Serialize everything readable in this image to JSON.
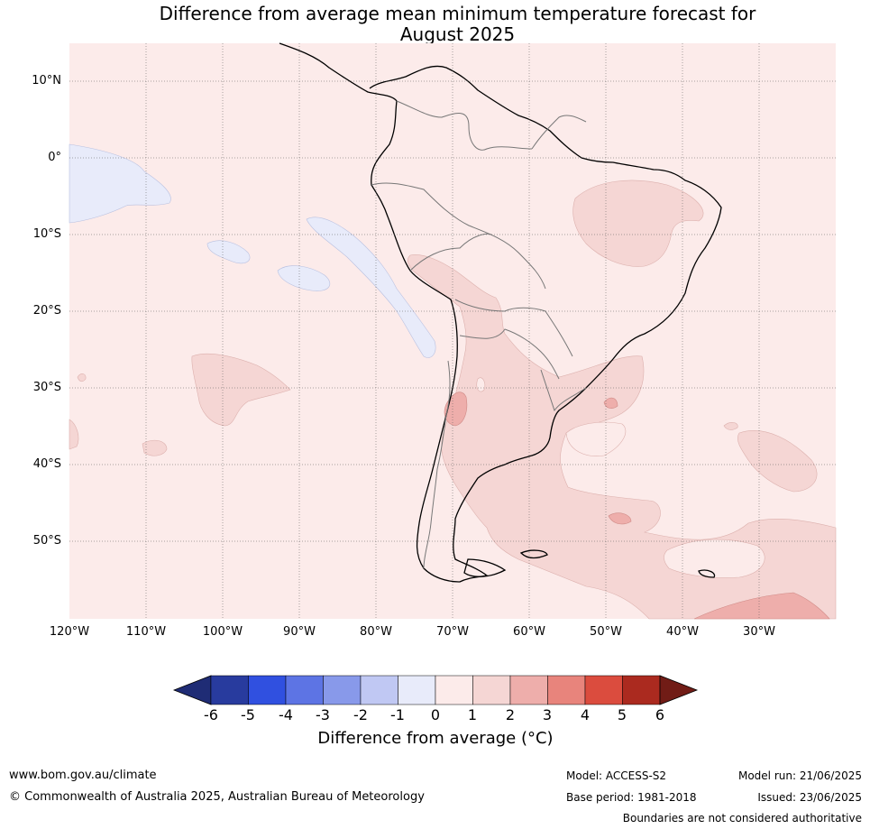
{
  "title": {
    "line1": "Difference from average mean minimum temperature forecast for",
    "line2": "August 2025"
  },
  "map": {
    "lat_labels": [
      "10°N",
      "0°",
      "10°S",
      "20°S",
      "30°S",
      "40°S",
      "50°S"
    ],
    "lon_labels": [
      "120°W",
      "110°W",
      "100°W",
      "90°W",
      "80°W",
      "70°W",
      "60°W",
      "50°W",
      "40°W",
      "30°W"
    ],
    "region": "South America and surrounding oceans",
    "gridlines": "dotted"
  },
  "colorbar": {
    "ticks": [
      "-6",
      "-5",
      "-4",
      "-3",
      "-2",
      "-1",
      "0",
      "1",
      "2",
      "3",
      "4",
      "5",
      "6"
    ],
    "colors": [
      "#283b9e",
      "#3050e0",
      "#5d74e4",
      "#8899ea",
      "#c0c8f3",
      "#e8ebfa",
      "#fcebea",
      "#f5d6d4",
      "#eeaeab",
      "#e8847c",
      "#db4c3e",
      "#ab2a1f"
    ],
    "low_extend_color": "#1f2c75",
    "high_extend_color": "#711c16",
    "label": "Difference from average (°C)"
  },
  "footer": {
    "website": "www.bom.gov.au/climate",
    "copyright": "© Commonwealth of Australia 2025, Australian Bureau of Meteorology",
    "model": "Model: ACCESS-S2",
    "model_run": "Model run: 21/06/2025",
    "base_period": "Base period: 1981-2018",
    "issued": "Issued: 23/06/2025",
    "disclaimer": "Boundaries are not considered authoritative"
  }
}
